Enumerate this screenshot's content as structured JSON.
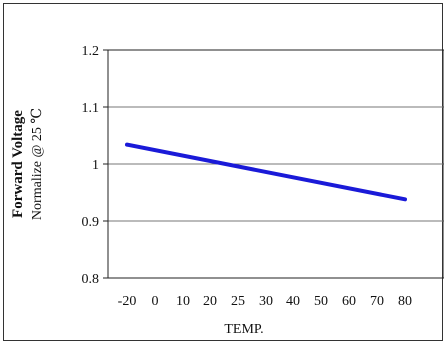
{
  "chart_data": {
    "type": "line",
    "title": "",
    "xlabel": "TEMP.",
    "ylabel_main": "Forward Voltage",
    "ylabel_sub": "Normalize @ 25 ℃",
    "x_ticks": [
      "-20",
      "0",
      "10",
      "20",
      "25",
      "30",
      "40",
      "50",
      "60",
      "70",
      "80"
    ],
    "y_ticks": [
      "0.8",
      "0.9",
      "1",
      "1.1",
      "1.2"
    ],
    "y_tick_values": [
      0.8,
      0.9,
      1.0,
      1.1,
      1.2
    ],
    "ylim": [
      0.8,
      1.2
    ],
    "grid": true,
    "series": [
      {
        "color": "#1a1ad8",
        "points": [
          {
            "x": "-20",
            "y": 1.034
          },
          {
            "x": "80",
            "y": 0.938
          }
        ]
      }
    ]
  }
}
